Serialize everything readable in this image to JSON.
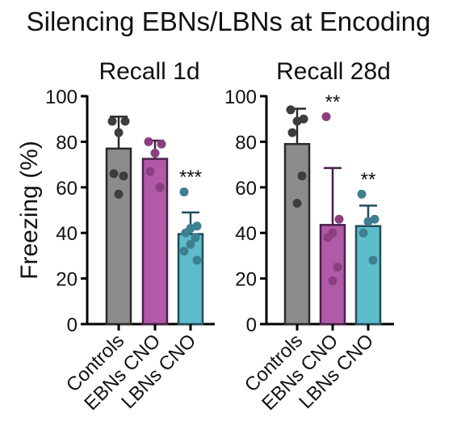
{
  "figure": {
    "title": "Silencing EBNs/LBNs at Encoding",
    "ylabel": "Freezing (%)"
  },
  "chart_data": [
    {
      "type": "bar",
      "title": "Recall 1d",
      "ylabel": "Freezing (%)",
      "ylim": [
        0,
        100
      ],
      "yticks": [
        "0",
        "20",
        "40",
        "60",
        "80",
        "100"
      ],
      "categories": [
        "Controls",
        "EBNs CNO",
        "LBNs CNO"
      ],
      "colors": [
        "#8c8c8e",
        "#b05aa8",
        "#5ebccb"
      ],
      "edge_colors": [
        "#2a2a2a",
        "#4a1f4a",
        "#1f4f5a"
      ],
      "dot_colors": [
        "#3d3d3d",
        "#8a3f80",
        "#3f7f90"
      ],
      "values": [
        77,
        72.5,
        39.5
      ],
      "error": [
        14,
        8,
        9.5
      ],
      "points": [
        [
          89,
          89,
          84,
          66,
          65,
          57
        ],
        [
          80,
          79,
          75,
          67,
          60
        ],
        [
          58,
          43,
          42,
          40,
          38,
          35,
          32,
          28
        ]
      ],
      "significance": [
        "",
        "",
        "***"
      ]
    },
    {
      "type": "bar",
      "title": "Recall 28d",
      "ylabel": "Freezing (%)",
      "ylim": [
        0,
        100
      ],
      "yticks": [
        "0",
        "20",
        "40",
        "60",
        "80",
        "100"
      ],
      "categories": [
        "Controls",
        "EBNs CNO",
        "LBNs CNO"
      ],
      "colors": [
        "#8c8c8e",
        "#b05aa8",
        "#5ebccb"
      ],
      "edge_colors": [
        "#2a2a2a",
        "#4a1f4a",
        "#1f4f5a"
      ],
      "dot_colors": [
        "#3d3d3d",
        "#8a3f80",
        "#3f7f90"
      ],
      "values": [
        79,
        43.5,
        43
      ],
      "error": [
        15.5,
        25,
        9
      ],
      "points": [
        [
          94,
          90,
          89,
          84,
          65,
          53
        ],
        [
          91,
          46,
          40,
          38,
          25,
          19
        ],
        [
          57,
          46,
          45,
          40,
          28
        ]
      ],
      "significance": [
        "",
        "**",
        "**"
      ]
    }
  ]
}
